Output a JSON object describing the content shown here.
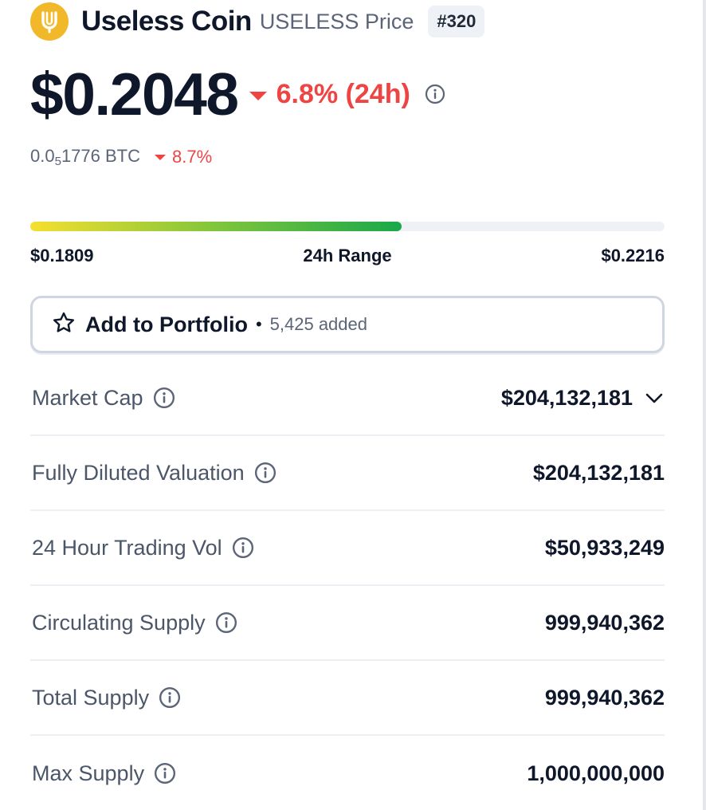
{
  "coin": {
    "name": "Useless Coin",
    "subtitle": "USELESS Price",
    "rank": "#320",
    "brand_color": "#f1b82a"
  },
  "price": {
    "usd": "$0.2048",
    "change_24h": "6.8% (24h)",
    "direction": "down",
    "btc_prefix": "0.0",
    "btc_sub": "5",
    "btc_rest": "1776 BTC",
    "btc_change": "8.7%",
    "down_color": "#ef4444"
  },
  "range": {
    "low": "$0.1809",
    "label": "24h Range",
    "high": "$0.2216",
    "fill_fraction": 0.585
  },
  "portfolio": {
    "label": "Add to Portfolio",
    "separator": "•",
    "added": "5,425 added"
  },
  "stats": [
    {
      "label": "Market Cap",
      "value": "$204,132,181",
      "icon": "info-icon",
      "expand": true
    },
    {
      "label": "Fully Diluted Valuation",
      "value": "$204,132,181",
      "icon": "info-icon"
    },
    {
      "label": "24 Hour Trading Vol",
      "value": "$50,933,249",
      "icon": "info-icon"
    },
    {
      "label": "Circulating Supply",
      "value": "999,940,362",
      "icon": "info-icon"
    },
    {
      "label": "Total Supply",
      "value": "999,940,362",
      "icon": "info-icon"
    },
    {
      "label": "Max Supply",
      "value": "1,000,000,000",
      "icon": "info-icon"
    }
  ]
}
